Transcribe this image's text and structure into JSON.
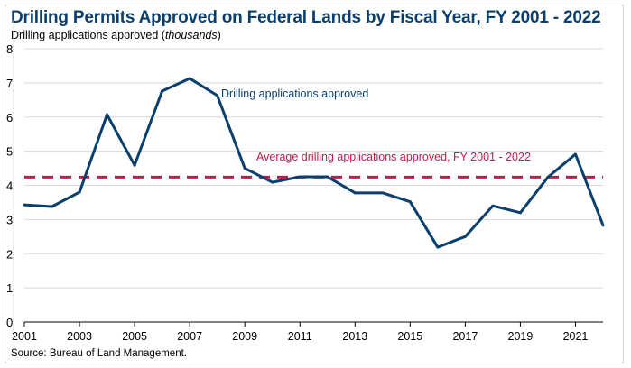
{
  "title": "Drilling Permits Approved on Federal Lands by Fiscal Year, FY 2001 - 2022",
  "subtitle_prefix": "Drilling applications approved (",
  "subtitle_unit": "thousands",
  "subtitle_suffix": ")",
  "source": "Source: Bureau of Land Management.",
  "chart_data": {
    "type": "line",
    "title": "Drilling Permits Approved on Federal Lands by Fiscal Year, FY 2001 - 2022",
    "ylabel": "Drilling applications approved (thousands)",
    "x": [
      2001,
      2002,
      2003,
      2004,
      2005,
      2006,
      2007,
      2008,
      2009,
      2010,
      2011,
      2012,
      2013,
      2014,
      2015,
      2016,
      2017,
      2018,
      2019,
      2020,
      2021,
      2022
    ],
    "xticks": [
      "2001",
      "2003",
      "2005",
      "2007",
      "2009",
      "2011",
      "2013",
      "2015",
      "2017",
      "2019",
      "2021"
    ],
    "yticks": [
      "0",
      "1",
      "2",
      "3",
      "4",
      "5",
      "6",
      "7",
      "8"
    ],
    "ylim": [
      0,
      8
    ],
    "grid": true,
    "series": [
      {
        "name": "Drilling applications approved",
        "color": "#0b3f6e",
        "values": [
          3.43,
          3.38,
          3.8,
          6.07,
          4.59,
          6.76,
          7.13,
          6.63,
          4.5,
          4.09,
          4.25,
          4.25,
          3.78,
          3.78,
          3.52,
          2.19,
          2.5,
          3.4,
          3.2,
          4.24,
          4.91,
          2.83
        ]
      },
      {
        "name": "Average drilling applications approved, FY 2001 - 2022",
        "color": "#c8174a",
        "style": "dashed",
        "value": 4.24
      }
    ]
  }
}
